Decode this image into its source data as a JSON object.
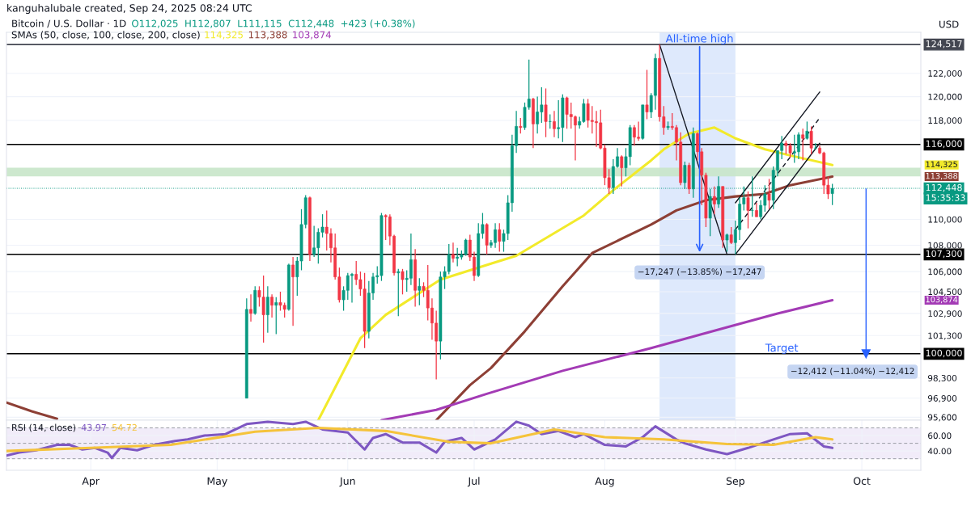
{
  "chart_data": [
    {
      "type": "candlestick",
      "title": "Bitcoin / U.S. Dollar · 1D",
      "subtitle": "O112,025  H112,807  L111,115  C112,448  +423 (+0.38%)",
      "ylabel": "USD",
      "x": [
        "2025-05-08",
        "2025-05-09",
        "2025-05-10",
        "2025-05-11",
        "2025-05-12",
        "2025-05-13",
        "2025-05-14",
        "2025-05-15",
        "2025-05-16",
        "2025-05-17",
        "2025-05-18",
        "2025-05-19",
        "2025-05-20",
        "2025-05-21",
        "2025-05-22",
        "2025-05-23",
        "2025-05-24",
        "2025-05-25",
        "2025-05-26",
        "2025-05-27",
        "2025-05-28",
        "2025-05-29",
        "2025-05-30",
        "2025-05-31",
        "2025-06-01",
        "2025-06-02",
        "2025-06-03",
        "2025-06-04",
        "2025-06-05",
        "2025-06-06",
        "2025-06-07",
        "2025-06-08",
        "2025-06-09",
        "2025-06-10",
        "2025-06-11",
        "2025-06-12",
        "2025-06-13",
        "2025-06-14",
        "2025-06-15",
        "2025-06-16",
        "2025-06-17",
        "2025-06-18",
        "2025-06-19",
        "2025-06-20",
        "2025-06-21",
        "2025-06-22",
        "2025-06-23",
        "2025-06-24",
        "2025-06-25",
        "2025-06-26",
        "2025-06-27",
        "2025-06-28",
        "2025-06-29",
        "2025-06-30",
        "2025-07-01",
        "2025-07-02",
        "2025-07-03",
        "2025-07-04",
        "2025-07-05",
        "2025-07-06",
        "2025-07-07",
        "2025-07-08",
        "2025-07-09",
        "2025-07-10",
        "2025-07-11",
        "2025-07-12",
        "2025-07-13",
        "2025-07-14",
        "2025-07-15",
        "2025-07-16",
        "2025-07-17",
        "2025-07-18",
        "2025-07-19",
        "2025-07-20",
        "2025-07-21",
        "2025-07-22",
        "2025-07-23",
        "2025-07-24",
        "2025-07-25",
        "2025-07-26",
        "2025-07-27",
        "2025-07-28",
        "2025-07-29",
        "2025-07-30",
        "2025-07-31",
        "2025-08-01",
        "2025-08-02",
        "2025-08-03",
        "2025-08-04",
        "2025-08-05",
        "2025-08-06",
        "2025-08-07",
        "2025-08-08",
        "2025-08-09",
        "2025-08-10",
        "2025-08-11",
        "2025-08-12",
        "2025-08-13",
        "2025-08-14",
        "2025-08-15",
        "2025-08-16",
        "2025-08-17",
        "2025-08-18",
        "2025-08-19",
        "2025-08-20",
        "2025-08-21",
        "2025-08-22",
        "2025-08-23",
        "2025-08-24",
        "2025-08-25",
        "2025-08-26",
        "2025-08-27",
        "2025-08-28",
        "2025-08-29",
        "2025-08-30",
        "2025-08-31",
        "2025-09-01",
        "2025-09-02",
        "2025-09-03",
        "2025-09-04",
        "2025-09-05",
        "2025-09-06",
        "2025-09-07",
        "2025-09-08",
        "2025-09-09",
        "2025-09-10",
        "2025-09-11",
        "2025-09-12",
        "2025-09-13",
        "2025-09-14",
        "2025-09-15",
        "2025-09-16",
        "2025-09-17",
        "2025-09-18",
        "2025-09-19",
        "2025-09-20",
        "2025-09-21",
        "2025-09-22",
        "2025-09-23",
        "2025-09-24"
      ],
      "ohlc": [
        [
          96900,
          104000,
          96900,
          103200
        ],
        [
          103200,
          104300,
          102300,
          102900
        ],
        [
          102900,
          104900,
          102800,
          104600
        ],
        [
          104600,
          104900,
          103400,
          104100
        ],
        [
          104100,
          105700,
          100800,
          102800
        ],
        [
          102800,
          104900,
          101500,
          104100
        ],
        [
          104100,
          104300,
          102600,
          103500
        ],
        [
          103500,
          104100,
          101400,
          103700
        ],
        [
          103700,
          104500,
          103100,
          103500
        ],
        [
          103500,
          103700,
          102600,
          103200
        ],
        [
          103200,
          106600,
          103100,
          106500
        ],
        [
          106500,
          107100,
          102000,
          105600
        ],
        [
          105600,
          107100,
          104200,
          106800
        ],
        [
          106800,
          110800,
          106100,
          109600
        ],
        [
          109600,
          111900,
          109300,
          111700
        ],
        [
          111700,
          111800,
          106800,
          107300
        ],
        [
          107300,
          109500,
          107100,
          107800
        ],
        [
          107800,
          109300,
          106600,
          109000
        ],
        [
          109000,
          110400,
          108600,
          109400
        ],
        [
          109400,
          110700,
          107600,
          108900
        ],
        [
          108900,
          109300,
          106700,
          107800
        ],
        [
          107800,
          108900,
          105400,
          105600
        ],
        [
          105600,
          106300,
          103700,
          103900
        ],
        [
          103900,
          104900,
          103100,
          104600
        ],
        [
          104600,
          105900,
          103900,
          105700
        ],
        [
          105700,
          105900,
          103700,
          105800
        ],
        [
          105800,
          106800,
          105000,
          105400
        ],
        [
          105400,
          106000,
          104200,
          104700
        ],
        [
          104700,
          105900,
          100400,
          101600
        ],
        [
          101600,
          105300,
          101100,
          104400
        ],
        [
          104400,
          105900,
          103900,
          105600
        ],
        [
          105600,
          106400,
          105100,
          105700
        ],
        [
          105700,
          110500,
          105300,
          110300
        ],
        [
          110300,
          110400,
          108400,
          110200
        ],
        [
          110200,
          110400,
          108000,
          108700
        ],
        [
          108700,
          108800,
          105700,
          105900
        ],
        [
          105900,
          106200,
          102700,
          106000
        ],
        [
          106000,
          106200,
          104300,
          105400
        ],
        [
          105400,
          106100,
          104500,
          105500
        ],
        [
          105500,
          108900,
          105000,
          106900
        ],
        [
          106900,
          107700,
          103400,
          104600
        ],
        [
          104600,
          105500,
          103500,
          104900
        ],
        [
          104900,
          105200,
          104100,
          104600
        ],
        [
          104600,
          106500,
          102400,
          103300
        ],
        [
          103300,
          104000,
          101000,
          102200
        ],
        [
          102200,
          103100,
          98200,
          100900
        ],
        [
          100900,
          106000,
          99600,
          105600
        ],
        [
          105600,
          106400,
          104700,
          106000
        ],
        [
          106000,
          108100,
          105800,
          107300
        ],
        [
          107300,
          108200,
          106700,
          107000
        ],
        [
          107000,
          107800,
          106400,
          107100
        ],
        [
          107100,
          107600,
          106900,
          107300
        ],
        [
          107300,
          108500,
          107200,
          108400
        ],
        [
          108400,
          108800,
          106800,
          107100
        ],
        [
          107100,
          107500,
          105300,
          105700
        ],
        [
          105700,
          109700,
          105600,
          108900
        ],
        [
          108900,
          110500,
          108500,
          109600
        ],
        [
          109600,
          109700,
          107300,
          108000
        ],
        [
          108000,
          108400,
          107800,
          108200
        ],
        [
          108200,
          109700,
          107800,
          109200
        ],
        [
          109200,
          109700,
          107500,
          108300
        ],
        [
          108300,
          109200,
          107500,
          108900
        ],
        [
          108900,
          111900,
          108400,
          111300
        ],
        [
          111300,
          116800,
          110600,
          115900
        ],
        [
          115900,
          118800,
          115300,
          117500
        ],
        [
          117500,
          118200,
          116900,
          117400
        ],
        [
          117400,
          119500,
          117200,
          119100
        ],
        [
          119100,
          123200,
          118900,
          119800
        ],
        [
          119800,
          119900,
          115700,
          117700
        ],
        [
          117700,
          120000,
          116900,
          118700
        ],
        [
          118700,
          120800,
          117800,
          119300
        ],
        [
          119300,
          120700,
          116600,
          117900
        ],
        [
          117900,
          118500,
          117300,
          117900
        ],
        [
          117900,
          118800,
          116600,
          117300
        ],
        [
          117300,
          119700,
          116500,
          117400
        ],
        [
          117400,
          120200,
          116200,
          119900
        ],
        [
          119900,
          120000,
          117300,
          118500
        ],
        [
          118500,
          119500,
          117300,
          118300
        ],
        [
          118300,
          118400,
          114700,
          117600
        ],
        [
          117600,
          118300,
          117300,
          117900
        ],
        [
          117900,
          119800,
          117800,
          119400
        ],
        [
          119400,
          119800,
          117400,
          118000
        ],
        [
          118000,
          119200,
          116900,
          117900
        ],
        [
          117900,
          118800,
          115800,
          117800
        ],
        [
          117800,
          118900,
          115600,
          115700
        ],
        [
          115700,
          116000,
          112700,
          113300
        ],
        [
          113300,
          114000,
          112000,
          112500
        ],
        [
          112500,
          114800,
          112000,
          114200
        ],
        [
          114200,
          115700,
          114100,
          115000
        ],
        [
          115000,
          115100,
          112600,
          114100
        ],
        [
          114100,
          115700,
          113400,
          115000
        ],
        [
          115000,
          117600,
          114300,
          117400
        ],
        [
          117400,
          117600,
          115900,
          116600
        ],
        [
          116600,
          117900,
          116300,
          116500
        ],
        [
          116500,
          119300,
          116400,
          119300
        ],
        [
          119300,
          122300,
          118100,
          118700
        ],
        [
          118700,
          120300,
          118200,
          120100
        ],
        [
          120100,
          123700,
          118900,
          123300
        ],
        [
          123300,
          124517,
          117900,
          118300
        ],
        [
          118300,
          119200,
          116800,
          117400
        ],
        [
          117400,
          117900,
          117200,
          117500
        ],
        [
          117500,
          118600,
          117200,
          117400
        ],
        [
          117400,
          117600,
          114700,
          116200
        ],
        [
          116200,
          117000,
          112700,
          112900
        ],
        [
          112900,
          114600,
          112400,
          114300
        ],
        [
          114300,
          114500,
          112000,
          112400
        ],
        [
          112400,
          117400,
          111700,
          116900
        ],
        [
          116900,
          117000,
          114700,
          115400
        ],
        [
          115400,
          115700,
          111100,
          113500
        ],
        [
          113500,
          113700,
          109400,
          110100
        ],
        [
          110100,
          112400,
          108700,
          111800
        ],
        [
          111800,
          112600,
          110400,
          111200
        ],
        [
          111200,
          113400,
          110900,
          112600
        ],
        [
          112600,
          112600,
          107800,
          108400
        ],
        [
          108400,
          108900,
          107500,
          108800
        ],
        [
          108800,
          109400,
          108100,
          108200
        ],
        [
          108200,
          109900,
          107300,
          109200
        ],
        [
          109200,
          111700,
          108400,
          111200
        ],
        [
          111200,
          112600,
          110700,
          111700
        ],
        [
          111700,
          112200,
          109300,
          110700
        ],
        [
          110700,
          113400,
          110200,
          110700
        ],
        [
          110700,
          111300,
          110200,
          110200
        ],
        [
          110200,
          111500,
          110000,
          111100
        ],
        [
          111100,
          112700,
          110600,
          112000
        ],
        [
          112000,
          113200,
          110800,
          111500
        ],
        [
          111500,
          114200,
          110800,
          113900
        ],
        [
          113900,
          115500,
          113400,
          115500
        ],
        [
          115500,
          116700,
          114800,
          116100
        ],
        [
          116100,
          116300,
          115200,
          115900
        ],
        [
          115900,
          116100,
          114900,
          115300
        ],
        [
          115300,
          116800,
          114500,
          115400
        ],
        [
          115400,
          117000,
          114800,
          116800
        ],
        [
          116800,
          117300,
          114700,
          116500
        ],
        [
          116500,
          117900,
          116400,
          117100
        ],
        [
          117100,
          117500,
          115200,
          115700
        ],
        [
          115700,
          116100,
          115600,
          115700
        ],
        [
          115700,
          115900,
          115200,
          115300
        ],
        [
          115300,
          115400,
          112000,
          112700
        ],
        [
          112700,
          113400,
          111600,
          112000
        ],
        [
          112025,
          112807,
          111115,
          112448
        ]
      ],
      "series": [
        {
          "type": "line",
          "color": "#f2ea2a",
          "x": [
            "2025-05-25",
            "2025-05-30",
            "2025-06-04",
            "2025-06-10",
            "2025-06-23",
            "2025-07-05",
            "2025-07-11",
            "2025-07-27",
            "2025-08-03",
            "2025-08-12",
            "2025-08-15",
            "2025-08-21",
            "2025-08-27",
            "2025-09-01",
            "2025-09-08",
            "2025-09-14",
            "2025-09-24"
          ],
          "values": [
            95400,
            98200,
            101100,
            102800,
            105400,
            106600,
            107200,
            110300,
            112300,
            114700,
            115600,
            116900,
            117400,
            116500,
            115600,
            115100,
            114325
          ]
        },
        {
          "type": "line",
          "color": "#8d3f35",
          "x": [
            "2025-03-12",
            "2025-03-18",
            "2025-03-24",
            "2025-05-01",
            "2025-06-22",
            "2025-06-30",
            "2025-07-05",
            "2025-07-13",
            "2025-07-22",
            "2025-07-29",
            "2025-08-12",
            "2025-08-18",
            "2025-08-25",
            "2025-09-01",
            "2025-09-08",
            "2025-09-14",
            "2025-09-24"
          ],
          "values": [
            96600,
            96000,
            95500,
            null,
            95400,
            97800,
            99000,
            101600,
            104900,
            107400,
            109600,
            110700,
            111500,
            111800,
            112000,
            112700,
            113388
          ]
        },
        {
          "type": "line",
          "color": "#a33bb5",
          "x": [
            "2025-06-09",
            "2025-06-22",
            "2025-07-04",
            "2025-07-22",
            "2025-08-12",
            "2025-08-30",
            "2025-09-11",
            "2025-09-24"
          ],
          "values": [
            95400,
            96100,
            97200,
            98800,
            100400,
            101900,
            102900,
            103874
          ]
        },
        {
          "type": "line",
          "color": "#131722",
          "x": [
            "2025-08-14",
            "2025-08-30"
          ],
          "values": [
            124517,
            107300
          ]
        },
        {
          "type": "line",
          "color": "#131722",
          "x": [
            "2025-09-01",
            "2025-09-21"
          ],
          "values": [
            107300,
            116100
          ]
        },
        {
          "type": "line",
          "color": "#131722",
          "x": [
            "2025-09-01",
            "2025-09-21"
          ],
          "values": [
            111300,
            120400
          ]
        },
        {
          "type": "line",
          "color": "#131722",
          "line_style": "dashed",
          "x": [
            "2025-09-01",
            "2025-09-21"
          ],
          "values": [
            109200,
            118200
          ]
        },
        {
          "type": "line",
          "color": "#2962ff",
          "marker": "triangle",
          "x": [
            "2025-10-02",
            "2025-10-02"
          ],
          "values": [
            112412,
            100000
          ]
        }
      ],
      "xlim": [
        "2025-03-12",
        "2025-10-15"
      ],
      "log": true,
      "ylim": [
        95400,
        125600
      ],
      "yticks": [
        {
          "value": 122000,
          "label": "122,000"
        },
        {
          "value": 120000,
          "label": "120,000"
        },
        {
          "value": 118000,
          "label": "118,000"
        },
        {
          "value": 110000,
          "label": "110,000"
        },
        {
          "value": 108000,
          "label": "108,000"
        },
        {
          "value": 106000,
          "label": "106,000"
        },
        {
          "value": 104500,
          "label": "104,500"
        },
        {
          "value": 102900,
          "label": "102,900"
        },
        {
          "value": 101300,
          "label": "101,300"
        },
        {
          "value": 98300,
          "label": "98,300"
        },
        {
          "value": 96900,
          "label": "96,900"
        },
        {
          "value": 95600,
          "label": "95,600"
        }
      ],
      "tick_labels": "y",
      "grid": true,
      "ref_lines": [
        {
          "axis": "y",
          "value": 124517,
          "label": "124,517",
          "color": "#434651"
        },
        {
          "axis": "y",
          "value": 116000,
          "label": "116,000",
          "color": "#000000"
        },
        {
          "axis": "y",
          "value": 107300,
          "label": "107,300",
          "color": "#000000"
        },
        {
          "axis": "y",
          "value": 100000,
          "label": "100,000",
          "color": "#000000"
        },
        {
          "axis": "y",
          "value": 112448,
          "label": "112,448",
          "color": "#089981",
          "line_style": "dotted"
        }
      ],
      "bands": [
        {
          "axis": "x",
          "from": "2025-08-14",
          "to": "2025-09-01",
          "color": "#d6e4fb"
        },
        {
          "axis": "y",
          "from": 113400,
          "to": 114100,
          "color": "#c8e6c9"
        }
      ],
      "annotations": [
        "kanguhalubale created, Sep 24, 2025 08:24 UTC",
        "SMAs (50, close, 100, close, 200, close)",
        "15:35:33",
        "114,325",
        "113,388",
        "103,874",
        {
          "text": "All-time high",
          "x": "2025-08-23T12:00",
          "y": 124517
        },
        {
          "text": "−17,247 (−13.85%) −17,247",
          "x": "2025-08-23T12:00",
          "y": 107300
        },
        {
          "text": "Target",
          "x": "2025-09-12",
          "y": 100000
        },
        {
          "text": "−12,412 (−11.04%) −12,412",
          "x": "2025-10-02",
          "y": 100000
        }
      ]
    },
    {
      "type": "line",
      "title": "RSI (14, close)",
      "series": [
        {
          "color": "#7e57c2",
          "x": [
            "2025-03-12",
            "2025-03-15",
            "2025-03-19",
            "2025-03-24",
            "2025-03-27",
            "2025-03-30",
            "2025-04-02",
            "2025-04-05",
            "2025-04-06",
            "2025-04-08",
            "2025-04-12",
            "2025-04-16",
            "2025-04-21",
            "2025-04-24",
            "2025-04-28",
            "2025-05-03",
            "2025-05-08",
            "2025-05-13",
            "2025-05-19",
            "2025-05-22",
            "2025-05-26",
            "2025-06-01",
            "2025-06-05",
            "2025-06-07",
            "2025-06-10",
            "2025-06-14",
            "2025-06-18",
            "2025-06-22",
            "2025-06-24",
            "2025-06-28",
            "2025-07-01",
            "2025-07-06",
            "2025-07-11",
            "2025-07-14",
            "2025-07-17",
            "2025-07-21",
            "2025-07-25",
            "2025-07-27",
            "2025-08-01",
            "2025-08-06",
            "2025-08-10",
            "2025-08-13",
            "2025-08-18",
            "2025-08-20",
            "2025-08-25",
            "2025-08-30",
            "2025-09-04",
            "2025-09-10",
            "2025-09-14",
            "2025-09-18",
            "2025-09-22",
            "2025-09-24"
          ],
          "values": [
            34,
            38,
            41,
            48,
            48,
            42,
            44,
            38,
            31,
            44,
            41,
            48,
            53,
            55,
            60,
            62,
            75,
            78,
            75,
            78,
            68,
            64,
            42,
            57,
            62,
            51,
            51,
            38,
            52,
            57,
            42,
            55,
            78,
            73,
            62,
            66,
            58,
            62,
            48,
            46,
            58,
            72,
            55,
            50,
            42,
            36,
            44,
            55,
            62,
            63,
            46,
            44
          ]
        },
        {
          "color": "#f5c33b",
          "x": [
            "2025-03-12",
            "2025-04-01",
            "2025-04-20",
            "2025-05-10",
            "2025-05-25",
            "2025-06-10",
            "2025-06-25",
            "2025-07-05",
            "2025-07-20",
            "2025-08-01",
            "2025-08-15",
            "2025-08-30",
            "2025-09-10",
            "2025-09-20",
            "2025-09-24"
          ],
          "values": [
            40,
            44,
            48,
            65,
            70,
            66,
            52,
            50,
            68,
            58,
            55,
            49,
            48,
            58,
            55
          ]
        }
      ],
      "annotations": [
        "43.97",
        "54.72"
      ],
      "xlim": [
        "2025-03-12",
        "2025-10-15"
      ],
      "xticks": [
        {
          "value": "2025-04-01",
          "label": "Apr"
        },
        {
          "value": "2025-05-01",
          "label": "May"
        },
        {
          "value": "2025-06-01",
          "label": "Jun"
        },
        {
          "value": "2025-07-01",
          "label": "Jul"
        },
        {
          "value": "2025-08-01",
          "label": "Aug"
        },
        {
          "value": "2025-09-01",
          "label": "Sep"
        },
        {
          "value": "2025-10-01",
          "label": "Oct"
        }
      ],
      "ylim": [
        15,
        80
      ],
      "yticks": [
        {
          "value": 60,
          "label": "60.00"
        },
        {
          "value": 40,
          "label": "40.00"
        }
      ],
      "grid": true,
      "ref_lines": [
        {
          "axis": "y",
          "value": 70,
          "line_style": "dashed",
          "color": "#9598a1"
        },
        {
          "axis": "y",
          "value": 50,
          "line_style": "dashed",
          "color": "#9598a1"
        },
        {
          "axis": "y",
          "value": 30,
          "line_style": "dashed",
          "color": "#9598a1"
        }
      ],
      "bands": [
        {
          "axis": "y",
          "from": 30,
          "to": 70,
          "color": "#efeaf8"
        }
      ]
    }
  ]
}
